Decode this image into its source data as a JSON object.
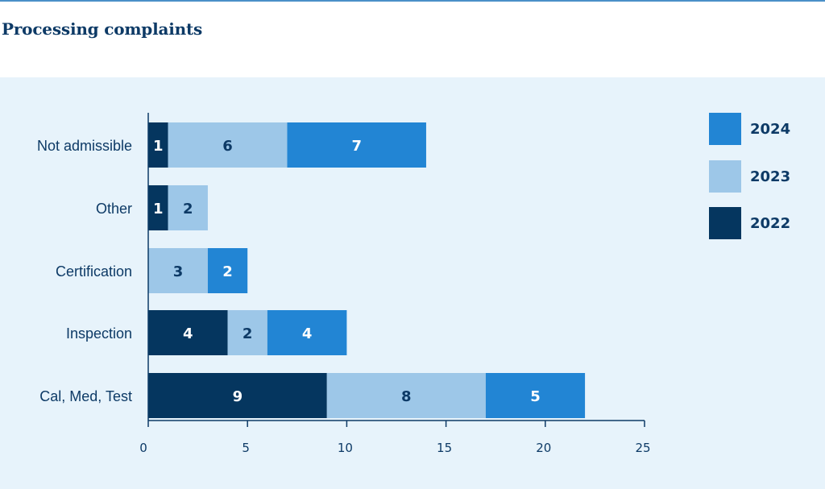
{
  "header": {
    "title": "Processing complaints"
  },
  "colors": {
    "2022": "#05365f",
    "2023": "#9dc7e8",
    "2024": "#2285d4",
    "axis": "#0d3a66",
    "panel": "#e7f3fb"
  },
  "chart_data": {
    "type": "bar",
    "orientation": "horizontal",
    "stacked": true,
    "title": "Processing complaints",
    "xlabel": "",
    "ylabel": "",
    "xlim": [
      0,
      25
    ],
    "xticks": [
      0,
      5,
      10,
      15,
      20,
      25
    ],
    "grid": false,
    "legend_position": "right",
    "categories": [
      "Not admissible",
      "Other",
      "Certification",
      "Inspection",
      "Cal, Med, Test"
    ],
    "series": [
      {
        "name": "2022",
        "values": [
          1,
          1,
          0,
          4,
          9
        ]
      },
      {
        "name": "2023",
        "values": [
          6,
          2,
          3,
          2,
          8
        ]
      },
      {
        "name": "2024",
        "values": [
          7,
          0,
          2,
          4,
          5
        ]
      }
    ],
    "legend_order": [
      "2024",
      "2023",
      "2022"
    ]
  }
}
